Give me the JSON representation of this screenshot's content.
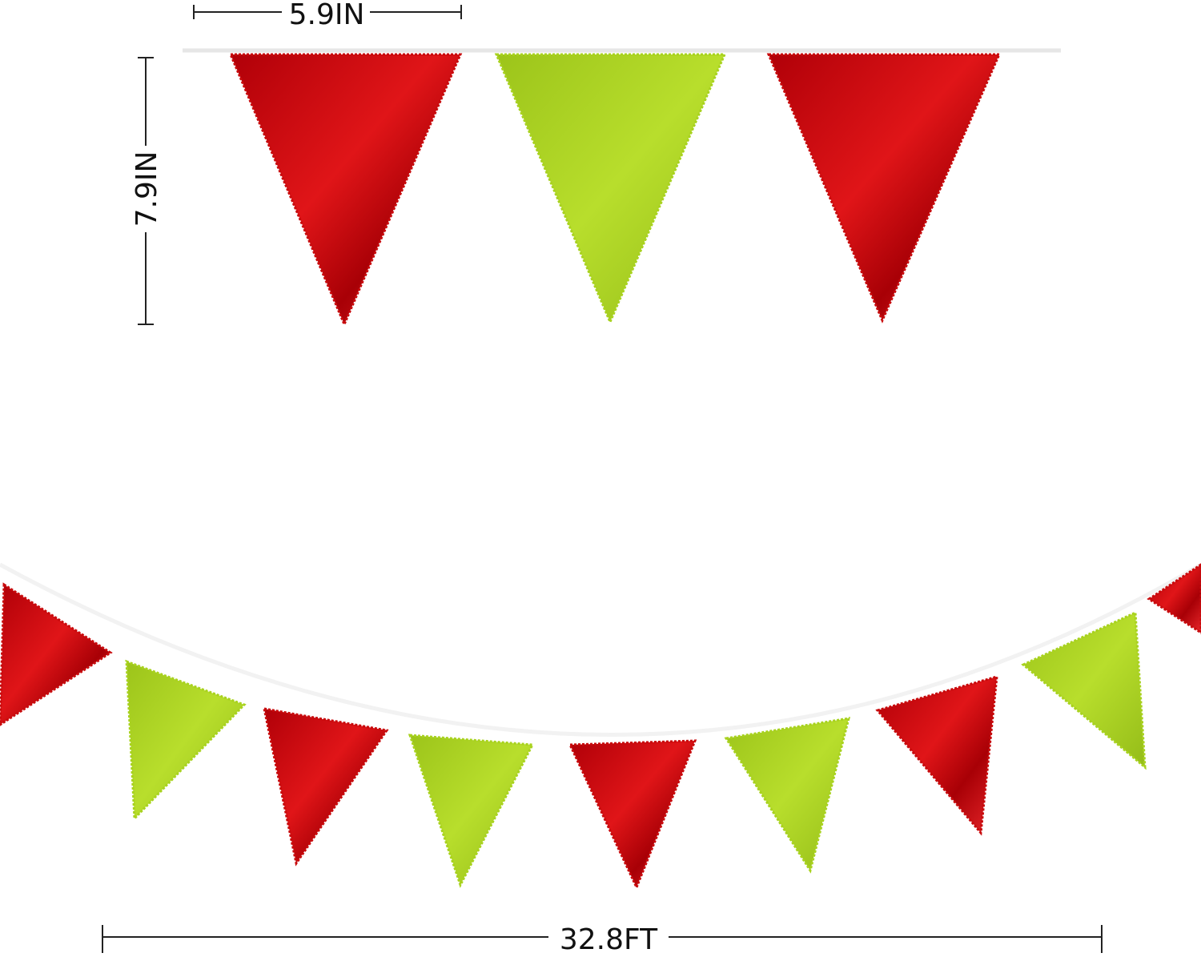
{
  "dimensions": {
    "flag_width": "5.9IN",
    "flag_height": "7.9IN",
    "total_length": "32.8FT"
  },
  "colors": {
    "red": "#c80a0c",
    "green": "#a8d21e",
    "string": "#e6e6e6",
    "dimension_line": "#222222"
  },
  "top_flags": [
    "red",
    "green",
    "red"
  ],
  "bottom_flags": [
    "red",
    "green",
    "red",
    "green",
    "red",
    "green",
    "red",
    "green",
    "red"
  ]
}
